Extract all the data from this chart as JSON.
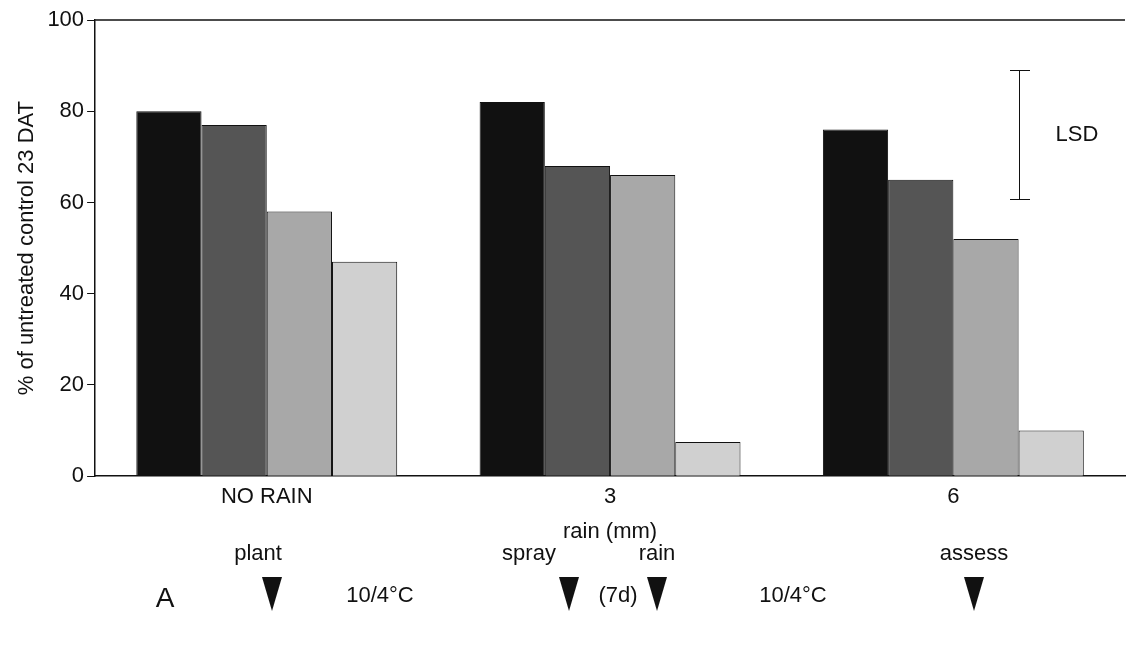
{
  "chart_data": {
    "type": "bar",
    "ylabel": "% of untreated control 23 DAT",
    "xlabel": "rain (mm)",
    "categories": [
      "NO RAIN",
      "3",
      "6"
    ],
    "series": [
      {
        "color": "#111111",
        "values": [
          80,
          82,
          76
        ]
      },
      {
        "color": "#555555",
        "values": [
          77,
          68,
          65
        ]
      },
      {
        "color": "#a8a8a8",
        "values": [
          58,
          66,
          52
        ]
      },
      {
        "color": "#d0d0d0",
        "values": [
          47,
          7.5,
          10
        ]
      }
    ],
    "ylim": [
      0,
      100
    ],
    "yticks": [
      0,
      20,
      40,
      60,
      80,
      100
    ],
    "grid": false,
    "legend": false,
    "annotations": [
      "LSD",
      "A",
      "plant",
      "10/4°C",
      "spray",
      "(7d)",
      "rain",
      "10/4°C",
      "assess"
    ]
  }
}
